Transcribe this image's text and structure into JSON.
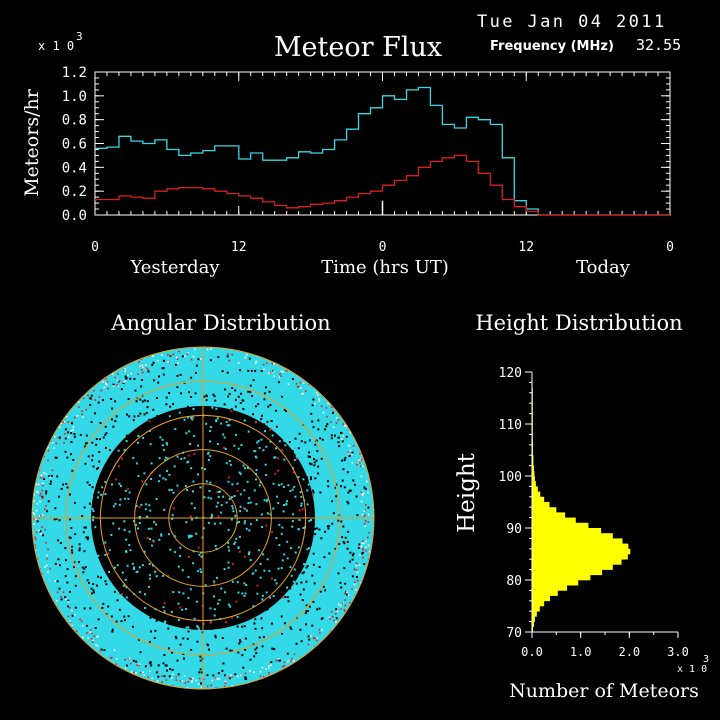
{
  "header": {
    "date": "Tue Jan 04 2011",
    "title": "Meteor Flux",
    "frequency_label": "Frequency (MHz)",
    "frequency_value": "32.55",
    "multiplier_base": "x 1 0",
    "multiplier_exp": "3"
  },
  "colors": {
    "background": "#000000",
    "axis": "#ffffff",
    "cyan_series": "#33d9e6",
    "red_series": "#d81f1f",
    "histogram": "#ffff00",
    "rings": "#e6a020",
    "disc": "#33d9e6"
  },
  "chart_data": [
    {
      "type": "line",
      "id": "flux",
      "ylabel": "Meteors/hr",
      "ymultiplier": "x 10^3",
      "ylim": [
        0,
        1.2
      ],
      "yticks": [
        "0.0",
        "0.2",
        "0.4",
        "0.6",
        "0.8",
        "1.0",
        "1.2"
      ],
      "xlabel": "Time (hrs UT)",
      "xlim": [
        0,
        48
      ],
      "xticks": [
        "0",
        "12",
        "0",
        "12",
        "0"
      ],
      "day_labels": [
        "Yesterday",
        "Today"
      ],
      "series": [
        {
          "color": "#33d9e6",
          "values": [
            0.56,
            0.57,
            0.66,
            0.62,
            0.6,
            0.63,
            0.55,
            0.5,
            0.52,
            0.54,
            0.58,
            0.58,
            0.47,
            0.52,
            0.46,
            0.46,
            0.48,
            0.53,
            0.52,
            0.55,
            0.63,
            0.72,
            0.85,
            0.9,
            1.0,
            0.97,
            1.05,
            1.07,
            0.92,
            0.76,
            0.73,
            0.82,
            0.8,
            0.76,
            0.48,
            0.12,
            0.05,
            0.0,
            0.0,
            0.0,
            0.0,
            0.0,
            0.0,
            0.0,
            0.0,
            0.0,
            0.0,
            0.0
          ]
        },
        {
          "color": "#d81f1f",
          "values": [
            0.13,
            0.13,
            0.16,
            0.15,
            0.14,
            0.2,
            0.22,
            0.23,
            0.23,
            0.22,
            0.2,
            0.18,
            0.16,
            0.14,
            0.11,
            0.08,
            0.06,
            0.07,
            0.09,
            0.1,
            0.12,
            0.15,
            0.18,
            0.2,
            0.25,
            0.29,
            0.33,
            0.4,
            0.45,
            0.48,
            0.5,
            0.45,
            0.35,
            0.25,
            0.13,
            0.07,
            0.03,
            0.0,
            0.0,
            0.0,
            0.0,
            0.0,
            0.0,
            0.0,
            0.0,
            0.0,
            0.0,
            0.0
          ]
        }
      ]
    },
    {
      "type": "scatter",
      "id": "angular",
      "title": "Angular Distribution",
      "form": "polar sky map",
      "ring_count": 5
    },
    {
      "type": "bar",
      "id": "height",
      "orientation": "horizontal",
      "title": "Height Distribution",
      "ylabel": "Height",
      "ylim": [
        70,
        120
      ],
      "yticks": [
        "70",
        "80",
        "90",
        "100",
        "110",
        "120"
      ],
      "xlabel": "Number of Meteors",
      "xlim": [
        0,
        3.0
      ],
      "xticks": [
        "0.0",
        "1.0",
        "2.0",
        "3.0"
      ],
      "xmultiplier_base": "x 1 0",
      "xmultiplier_exp": "3",
      "bins_start": 70,
      "bin_width": 1,
      "values": [
        0.02,
        0.04,
        0.06,
        0.1,
        0.16,
        0.25,
        0.37,
        0.53,
        0.72,
        0.95,
        1.2,
        1.44,
        1.66,
        1.84,
        1.97,
        2.02,
        1.98,
        1.86,
        1.66,
        1.42,
        1.16,
        0.9,
        0.68,
        0.5,
        0.36,
        0.25,
        0.17,
        0.12,
        0.08,
        0.06,
        0.05,
        0.04,
        0.03,
        0.03,
        0.02,
        0.02,
        0.02,
        0.01,
        0.01,
        0.01,
        0.01,
        0.01,
        0.01,
        0.01,
        0.01,
        0.01,
        0.01,
        0.0,
        0.0,
        0.0
      ]
    }
  ]
}
